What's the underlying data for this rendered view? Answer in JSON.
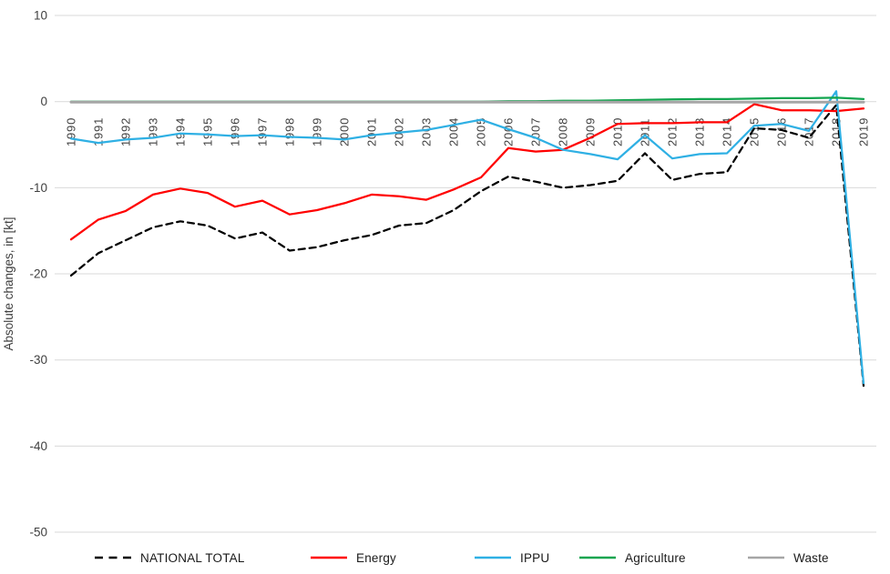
{
  "chart_data": {
    "type": "line",
    "title": "",
    "xlabel": "",
    "ylabel": "Absolute changes, in [kt]",
    "ylim": [
      -50,
      10
    ],
    "yticks": [
      10,
      0,
      -10,
      -20,
      -30,
      -40,
      -50
    ],
    "ytick_labels": [
      "10",
      "0",
      "-10",
      "-20",
      "-30",
      "-40",
      "-50"
    ],
    "grid": true,
    "legend_position": "bottom",
    "categories": [
      "1990",
      "1991",
      "1992",
      "1993",
      "1994",
      "1995",
      "1996",
      "1997",
      "1998",
      "1999",
      "2000",
      "2001",
      "2002",
      "2003",
      "2004",
      "2005",
      "2006",
      "2007",
      "2008",
      "2009",
      "2010",
      "2011",
      "2012",
      "2013",
      "2014",
      "2015",
      "2016",
      "2017",
      "2018",
      "2019"
    ],
    "series": [
      {
        "name": "NATIONAL TOTAL",
        "color": "#000000",
        "style": "dashed",
        "values": [
          -20.2,
          -17.6,
          -16.1,
          -14.6,
          -13.9,
          -14.4,
          -15.9,
          -15.2,
          -17.3,
          -16.9,
          -16.1,
          -15.5,
          -14.4,
          -14.1,
          -12.6,
          -10.4,
          -8.7,
          -9.3,
          -10.0,
          -9.7,
          -9.2,
          -6.0,
          -9.1,
          -8.4,
          -8.2,
          -3.1,
          -3.3,
          -4.2,
          -0.4,
          -33.0
        ]
      },
      {
        "name": "Energy",
        "color": "#FF0000",
        "style": "solid",
        "values": [
          -16.0,
          -13.7,
          -12.7,
          -10.8,
          -10.1,
          -10.6,
          -12.2,
          -11.5,
          -13.1,
          -12.6,
          -11.8,
          -10.8,
          -11.0,
          -11.4,
          -10.2,
          -8.8,
          -5.4,
          -5.8,
          -5.6,
          -4.2,
          -2.6,
          -2.5,
          -2.5,
          -2.4,
          -2.4,
          -0.3,
          -1.0,
          -1.0,
          -1.1,
          -0.8
        ]
      },
      {
        "name": "IPPU",
        "color": "#2FB0E4",
        "style": "solid",
        "values": [
          -4.3,
          -4.8,
          -4.4,
          -4.2,
          -3.7,
          -3.8,
          -4.0,
          -3.9,
          -4.1,
          -4.2,
          -4.4,
          -3.9,
          -3.6,
          -3.3,
          -2.7,
          -2.1,
          -3.2,
          -4.2,
          -5.6,
          -6.1,
          -6.7,
          -3.9,
          -6.6,
          -6.1,
          -6.0,
          -2.8,
          -2.6,
          -3.4,
          1.2,
          -32.7
        ]
      },
      {
        "name": "Agriculture",
        "color": "#12A54F",
        "style": "solid",
        "values": [
          0,
          0,
          0,
          0,
          0,
          0,
          0,
          0,
          0,
          0,
          0,
          0,
          0,
          0,
          0,
          0,
          0.05,
          0.05,
          0.1,
          0.1,
          0.15,
          0.2,
          0.25,
          0.3,
          0.3,
          0.35,
          0.4,
          0.4,
          0.45,
          0.3
        ]
      },
      {
        "name": "Waste",
        "color": "#A6A6A6",
        "style": "solid",
        "values": [
          -0.05,
          -0.05,
          -0.05,
          -0.05,
          -0.05,
          -0.05,
          -0.05,
          -0.05,
          -0.05,
          -0.05,
          -0.05,
          -0.05,
          -0.05,
          -0.05,
          -0.05,
          -0.05,
          -0.05,
          -0.05,
          -0.05,
          -0.05,
          -0.05,
          -0.05,
          -0.05,
          -0.05,
          -0.05,
          -0.05,
          -0.05,
          -0.05,
          -0.05,
          -0.05
        ]
      }
    ]
  },
  "style_colors": {
    "gridline": "#D9D9D9",
    "axis_text": "#404040",
    "legend_text": "#1a1a1a",
    "background": "#FFFFFF"
  }
}
